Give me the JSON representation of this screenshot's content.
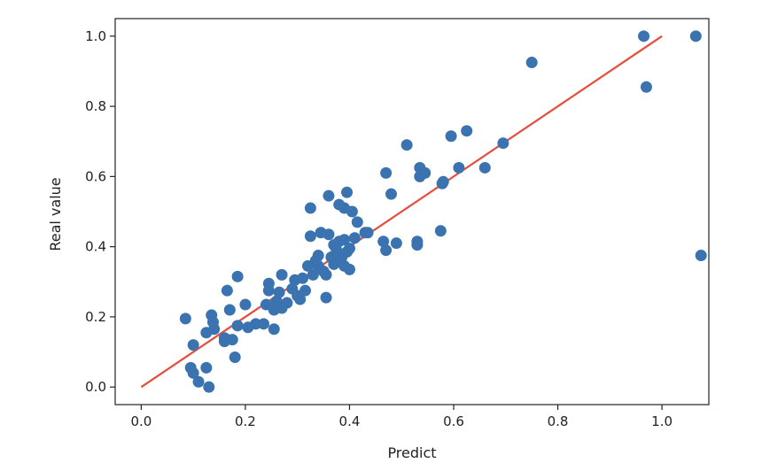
{
  "chart_data": {
    "type": "scatter",
    "xlabel": "Predict",
    "ylabel": "Real value",
    "xlim": [
      -0.05,
      1.09
    ],
    "ylim": [
      -0.05,
      1.05
    ],
    "xticks": [
      "0.0",
      "0.2",
      "0.4",
      "0.6",
      "0.8",
      "1.0"
    ],
    "yticks": [
      "0.0",
      "0.2",
      "0.4",
      "0.6",
      "0.8",
      "1.0"
    ],
    "grid": false,
    "points": [
      {
        "x": 0.085,
        "y": 0.195
      },
      {
        "x": 0.095,
        "y": 0.055
      },
      {
        "x": 0.1,
        "y": 0.04
      },
      {
        "x": 0.1,
        "y": 0.12
      },
      {
        "x": 0.11,
        "y": 0.015
      },
      {
        "x": 0.125,
        "y": 0.055
      },
      {
        "x": 0.13,
        "y": 0.0
      },
      {
        "x": 0.125,
        "y": 0.155
      },
      {
        "x": 0.135,
        "y": 0.205
      },
      {
        "x": 0.138,
        "y": 0.185
      },
      {
        "x": 0.14,
        "y": 0.165
      },
      {
        "x": 0.16,
        "y": 0.14
      },
      {
        "x": 0.16,
        "y": 0.13
      },
      {
        "x": 0.165,
        "y": 0.275
      },
      {
        "x": 0.17,
        "y": 0.22
      },
      {
        "x": 0.175,
        "y": 0.135
      },
      {
        "x": 0.18,
        "y": 0.085
      },
      {
        "x": 0.185,
        "y": 0.175
      },
      {
        "x": 0.185,
        "y": 0.315
      },
      {
        "x": 0.2,
        "y": 0.235
      },
      {
        "x": 0.205,
        "y": 0.17
      },
      {
        "x": 0.22,
        "y": 0.18
      },
      {
        "x": 0.235,
        "y": 0.18
      },
      {
        "x": 0.24,
        "y": 0.235
      },
      {
        "x": 0.245,
        "y": 0.295
      },
      {
        "x": 0.245,
        "y": 0.275
      },
      {
        "x": 0.255,
        "y": 0.22
      },
      {
        "x": 0.255,
        "y": 0.165
      },
      {
        "x": 0.26,
        "y": 0.245
      },
      {
        "x": 0.265,
        "y": 0.27
      },
      {
        "x": 0.27,
        "y": 0.32
      },
      {
        "x": 0.27,
        "y": 0.225
      },
      {
        "x": 0.28,
        "y": 0.24
      },
      {
        "x": 0.29,
        "y": 0.28
      },
      {
        "x": 0.295,
        "y": 0.305
      },
      {
        "x": 0.3,
        "y": 0.26
      },
      {
        "x": 0.305,
        "y": 0.25
      },
      {
        "x": 0.31,
        "y": 0.31
      },
      {
        "x": 0.315,
        "y": 0.275
      },
      {
        "x": 0.32,
        "y": 0.345
      },
      {
        "x": 0.325,
        "y": 0.51
      },
      {
        "x": 0.325,
        "y": 0.43
      },
      {
        "x": 0.33,
        "y": 0.32
      },
      {
        "x": 0.335,
        "y": 0.36
      },
      {
        "x": 0.34,
        "y": 0.375
      },
      {
        "x": 0.34,
        "y": 0.345
      },
      {
        "x": 0.345,
        "y": 0.44
      },
      {
        "x": 0.35,
        "y": 0.33
      },
      {
        "x": 0.355,
        "y": 0.255
      },
      {
        "x": 0.355,
        "y": 0.32
      },
      {
        "x": 0.36,
        "y": 0.435
      },
      {
        "x": 0.36,
        "y": 0.545
      },
      {
        "x": 0.365,
        "y": 0.37
      },
      {
        "x": 0.37,
        "y": 0.35
      },
      {
        "x": 0.37,
        "y": 0.405
      },
      {
        "x": 0.375,
        "y": 0.39
      },
      {
        "x": 0.38,
        "y": 0.415
      },
      {
        "x": 0.38,
        "y": 0.52
      },
      {
        "x": 0.385,
        "y": 0.37
      },
      {
        "x": 0.39,
        "y": 0.345
      },
      {
        "x": 0.39,
        "y": 0.42
      },
      {
        "x": 0.39,
        "y": 0.51
      },
      {
        "x": 0.395,
        "y": 0.555
      },
      {
        "x": 0.395,
        "y": 0.385
      },
      {
        "x": 0.4,
        "y": 0.335
      },
      {
        "x": 0.4,
        "y": 0.395
      },
      {
        "x": 0.405,
        "y": 0.5
      },
      {
        "x": 0.41,
        "y": 0.425
      },
      {
        "x": 0.415,
        "y": 0.47
      },
      {
        "x": 0.43,
        "y": 0.44
      },
      {
        "x": 0.435,
        "y": 0.44
      },
      {
        "x": 0.465,
        "y": 0.415
      },
      {
        "x": 0.47,
        "y": 0.39
      },
      {
        "x": 0.47,
        "y": 0.61
      },
      {
        "x": 0.48,
        "y": 0.55
      },
      {
        "x": 0.49,
        "y": 0.41
      },
      {
        "x": 0.51,
        "y": 0.69
      },
      {
        "x": 0.53,
        "y": 0.405
      },
      {
        "x": 0.53,
        "y": 0.415
      },
      {
        "x": 0.535,
        "y": 0.625
      },
      {
        "x": 0.535,
        "y": 0.6
      },
      {
        "x": 0.545,
        "y": 0.61
      },
      {
        "x": 0.575,
        "y": 0.445
      },
      {
        "x": 0.578,
        "y": 0.58
      },
      {
        "x": 0.58,
        "y": 0.585
      },
      {
        "x": 0.595,
        "y": 0.715
      },
      {
        "x": 0.61,
        "y": 0.625
      },
      {
        "x": 0.625,
        "y": 0.73
      },
      {
        "x": 0.66,
        "y": 0.625
      },
      {
        "x": 0.695,
        "y": 0.695
      },
      {
        "x": 0.75,
        "y": 0.925
      },
      {
        "x": 0.965,
        "y": 1.0
      },
      {
        "x": 0.97,
        "y": 0.855
      },
      {
        "x": 1.065,
        "y": 1.0
      },
      {
        "x": 1.075,
        "y": 0.375
      }
    ],
    "reference_line": {
      "x": [
        0.0,
        1.0
      ],
      "y": [
        0.0,
        1.0
      ]
    },
    "colors": {
      "points": "#3a73b0",
      "line": "#e74c3c",
      "axes": "#222222"
    }
  }
}
